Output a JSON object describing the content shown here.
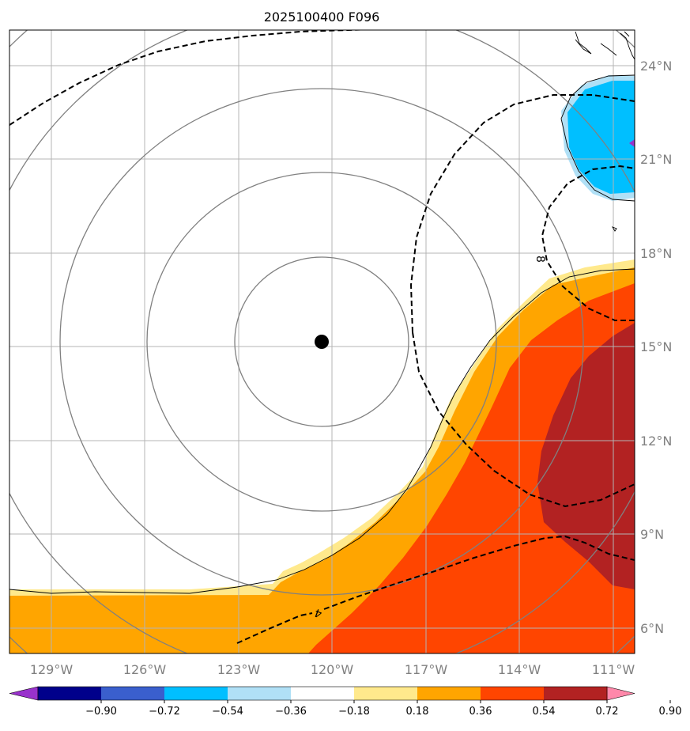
{
  "title": "2025100400 F096",
  "map": {
    "lon_range": [
      -130,
      -111
    ],
    "lat_range": [
      5,
      25
    ],
    "storm_center": {
      "lon": -120.2,
      "lat": 15.2
    },
    "range_rings": 5,
    "lon_ticks": [
      "129°W",
      "126°W",
      "123°W",
      "120°W",
      "117°W",
      "114°W",
      "111°W"
    ],
    "lat_ticks": [
      "24°N",
      "21°N",
      "18°N",
      "15°N",
      "12°N",
      "9°N",
      "6°N"
    ],
    "contour_labels": [
      "8",
      "4"
    ]
  },
  "colorbar": {
    "levels": [
      "−0.90",
      "−0.72",
      "−0.54",
      "−0.36",
      "−0.18",
      "0.18",
      "0.36",
      "0.54",
      "0.72",
      "0.90"
    ],
    "colors": [
      "#9932cc",
      "#00008b",
      "#3a5fcd",
      "#00bfff",
      "#b0e0f6",
      "#ffffff",
      "#ffe98c",
      "#ffa500",
      "#ff4500",
      "#b22222",
      "#ff88aa"
    ]
  }
}
